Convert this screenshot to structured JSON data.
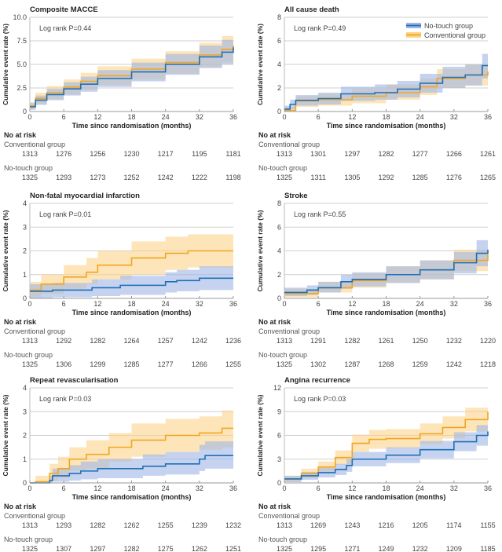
{
  "colors": {
    "no_touch": "#1f6fb5",
    "conventional": "#f2a51e",
    "no_touch_band": "#9fb6e6",
    "conventional_band": "#fcd48a"
  },
  "legend": {
    "no_touch": "No-touch group",
    "conventional": "Conventional group",
    "placement": "top-right of All cause death panel"
  },
  "common": {
    "xlabel": "Time since randomisation (months)",
    "ylabel": "Cumulative event rate (%)",
    "risk_header": "No at risk",
    "conv_label": "Conventional group",
    "nt_label": "No-touch group",
    "x_tick_labels": [
      "0",
      "6",
      "12",
      "18",
      "24",
      "32",
      "36"
    ]
  },
  "chart_data": [
    {
      "type": "line",
      "title": "Composite MACCE",
      "logrank": "Log rank P=0.44",
      "ylim": [
        0,
        10
      ],
      "y_tick_labels": [
        "0",
        "2.5",
        "5.0",
        "7.5",
        "10.0"
      ],
      "xlim": [
        0,
        36
      ],
      "grid": true,
      "series": [
        {
          "name": "No-touch group",
          "points": [
            [
              0,
              0.5,
              0.2,
              0.9
            ],
            [
              1,
              1.2,
              0.7,
              1.7
            ],
            [
              3,
              1.8,
              1.2,
              2.4
            ],
            [
              6,
              2.4,
              1.7,
              3.1
            ],
            [
              9,
              2.9,
              2.1,
              3.7
            ],
            [
              12,
              3.5,
              2.6,
              4.4
            ],
            [
              18,
              4.2,
              3.2,
              5.2
            ],
            [
              24,
              5.0,
              3.9,
              6.1
            ],
            [
              30,
              5.8,
              4.6,
              7.0
            ],
            [
              34,
              6.3,
              5.0,
              7.6
            ],
            [
              36,
              6.8,
              5.4,
              8.1
            ]
          ]
        },
        {
          "name": "Conventional group",
          "points": [
            [
              0,
              0.6,
              0.2,
              1.0
            ],
            [
              1,
              1.4,
              0.8,
              2.0
            ],
            [
              3,
              2.0,
              1.3,
              2.7
            ],
            [
              6,
              2.6,
              1.8,
              3.4
            ],
            [
              9,
              3.2,
              2.3,
              4.1
            ],
            [
              12,
              3.8,
              2.8,
              4.8
            ],
            [
              18,
              4.5,
              3.4,
              5.6
            ],
            [
              24,
              5.2,
              4.0,
              6.4
            ],
            [
              30,
              6.0,
              4.7,
              7.3
            ],
            [
              34,
              6.6,
              5.2,
              8.0
            ],
            [
              36,
              7.0,
              5.6,
              8.5
            ]
          ]
        }
      ],
      "at_risk": {
        "conventional": [
          "1313",
          "1276",
          "1256",
          "1230",
          "1217",
          "1195",
          "1181"
        ],
        "no_touch": [
          "1325",
          "1293",
          "1273",
          "1252",
          "1242",
          "1222",
          "1198"
        ]
      }
    },
    {
      "type": "line",
      "title": "All cause death",
      "logrank": "Log rank P=0.49",
      "ylim": [
        0,
        8
      ],
      "y_tick_labels": [
        "0",
        "2",
        "4",
        "6",
        "8"
      ],
      "xlim": [
        0,
        36
      ],
      "grid": true,
      "series": [
        {
          "name": "No-touch group",
          "points": [
            [
              0,
              0.2,
              0,
              0.5
            ],
            [
              1,
              0.6,
              0.2,
              1.0
            ],
            [
              2,
              0.95,
              0.5,
              1.4
            ],
            [
              6,
              1.1,
              0.6,
              1.6
            ],
            [
              10,
              1.5,
              0.9,
              2.1
            ],
            [
              16,
              1.6,
              1.0,
              2.3
            ],
            [
              20,
              1.9,
              1.2,
              2.6
            ],
            [
              24,
              2.4,
              1.6,
              3.2
            ],
            [
              28,
              2.9,
              2.0,
              3.8
            ],
            [
              32,
              3.1,
              2.2,
              4.0
            ],
            [
              35,
              3.9,
              2.8,
              4.9
            ],
            [
              36,
              3.9,
              2.8,
              4.9
            ]
          ]
        },
        {
          "name": "Conventional group",
          "points": [
            [
              0,
              0.1,
              0,
              0.4
            ],
            [
              2,
              0.9,
              0.4,
              1.3
            ],
            [
              6,
              1.0,
              0.5,
              1.5
            ],
            [
              12,
              1.3,
              0.7,
              1.9
            ],
            [
              18,
              1.6,
              1.0,
              2.3
            ],
            [
              24,
              2.1,
              1.4,
              2.8
            ],
            [
              27,
              2.8,
              2.0,
              3.6
            ],
            [
              32,
              3.1,
              2.2,
              4.0
            ],
            [
              36,
              3.4,
              2.4,
              4.4
            ]
          ]
        }
      ],
      "at_risk": {
        "conventional": [
          "1313",
          "1301",
          "1297",
          "1282",
          "1277",
          "1266",
          "1261"
        ],
        "no_touch": [
          "1325",
          "1311",
          "1305",
          "1292",
          "1285",
          "1276",
          "1265"
        ]
      }
    },
    {
      "type": "line",
      "title": "Non-fatal myocardial infarction",
      "logrank": "Log rank P=0.01",
      "ylim": [
        0,
        4
      ],
      "y_tick_labels": [
        "0",
        "1",
        "2",
        "3",
        "4"
      ],
      "xlim": [
        0,
        36
      ],
      "grid": true,
      "series": [
        {
          "name": "No-touch group",
          "points": [
            [
              0,
              0.3,
              0,
              0.6
            ],
            [
              4,
              0.35,
              0.05,
              0.65
            ],
            [
              11,
              0.45,
              0.1,
              0.8
            ],
            [
              16,
              0.55,
              0.15,
              0.95
            ],
            [
              24,
              0.7,
              0.25,
              1.1
            ],
            [
              26,
              0.75,
              0.3,
              1.2
            ],
            [
              30,
              0.85,
              0.35,
              1.35
            ],
            [
              36,
              0.85,
              0.35,
              1.35
            ]
          ]
        },
        {
          "name": "Conventional group",
          "points": [
            [
              0,
              0.35,
              0.05,
              0.7
            ],
            [
              2,
              0.6,
              0.2,
              1.0
            ],
            [
              6,
              0.9,
              0.4,
              1.4
            ],
            [
              10,
              1.1,
              0.6,
              1.7
            ],
            [
              12,
              1.4,
              0.8,
              2.0
            ],
            [
              18,
              1.7,
              1.0,
              2.4
            ],
            [
              24,
              1.9,
              1.2,
              2.6
            ],
            [
              28,
              2.0,
              1.3,
              2.7
            ],
            [
              36,
              2.0,
              1.3,
              2.7
            ]
          ]
        }
      ],
      "at_risk": {
        "conventional": [
          "1313",
          "1292",
          "1282",
          "1264",
          "1257",
          "1242",
          "1236"
        ],
        "no_touch": [
          "1325",
          "1306",
          "1299",
          "1285",
          "1277",
          "1266",
          "1255"
        ]
      }
    },
    {
      "type": "line",
      "title": "Stroke",
      "logrank": "Log rank P=0.55",
      "ylim": [
        0,
        8
      ],
      "y_tick_labels": [
        "0",
        "2",
        "4",
        "6",
        "8"
      ],
      "xlim": [
        0,
        36
      ],
      "grid": true,
      "series": [
        {
          "name": "No-touch group",
          "points": [
            [
              0,
              0.5,
              0.2,
              0.9
            ],
            [
              4,
              0.7,
              0.3,
              1.1
            ],
            [
              6,
              0.9,
              0.5,
              1.4
            ],
            [
              10,
              1.4,
              0.8,
              2.0
            ],
            [
              12,
              1.6,
              1.0,
              2.2
            ],
            [
              18,
              2.0,
              1.3,
              2.7
            ],
            [
              24,
              2.4,
              1.6,
              3.2
            ],
            [
              30,
              3.0,
              2.1,
              3.9
            ],
            [
              34,
              3.8,
              2.7,
              4.9
            ],
            [
              36,
              4.1,
              3.0,
              5.3
            ]
          ]
        },
        {
          "name": "Conventional group",
          "points": [
            [
              0,
              0.4,
              0.1,
              0.8
            ],
            [
              6,
              0.9,
              0.5,
              1.4
            ],
            [
              12,
              1.5,
              0.9,
              2.1
            ],
            [
              18,
              2.0,
              1.3,
              2.7
            ],
            [
              24,
              2.4,
              1.6,
              3.2
            ],
            [
              30,
              3.2,
              2.3,
              4.1
            ],
            [
              36,
              3.7,
              2.7,
              4.7
            ]
          ]
        }
      ],
      "at_risk": {
        "conventional": [
          "1313",
          "1291",
          "1282",
          "1261",
          "1250",
          "1232",
          "1220"
        ],
        "no_touch": [
          "1325",
          "1302",
          "1287",
          "1268",
          "1259",
          "1242",
          "1218"
        ]
      }
    },
    {
      "type": "line",
      "title": "Repeat revascularisation",
      "logrank": "Log rank P=0.03",
      "ylim": [
        0,
        4
      ],
      "y_tick_labels": [
        "0",
        "1",
        "2",
        "3",
        "4"
      ],
      "xlim": [
        0,
        36
      ],
      "grid": true,
      "series": [
        {
          "name": "No-touch group",
          "points": [
            [
              0,
              0,
              0,
              0
            ],
            [
              3.5,
              0.1,
              0,
              0.3
            ],
            [
              4,
              0.3,
              0.05,
              0.6
            ],
            [
              7,
              0.4,
              0.1,
              0.75
            ],
            [
              9,
              0.5,
              0.15,
              0.9
            ],
            [
              12,
              0.6,
              0.2,
              1.0
            ],
            [
              20,
              0.7,
              0.3,
              1.2
            ],
            [
              24,
              0.8,
              0.35,
              1.3
            ],
            [
              30,
              1.0,
              0.5,
              1.6
            ],
            [
              31,
              1.15,
              0.6,
              1.75
            ],
            [
              36,
              1.15,
              0.6,
              1.75
            ]
          ]
        },
        {
          "name": "Conventional group",
          "points": [
            [
              0,
              0,
              0,
              0
            ],
            [
              1,
              0.05,
              0,
              0.3
            ],
            [
              3.5,
              0.4,
              0.1,
              0.8
            ],
            [
              5,
              0.6,
              0.2,
              1.1
            ],
            [
              7,
              1.0,
              0.5,
              1.5
            ],
            [
              10,
              1.2,
              0.6,
              1.8
            ],
            [
              14,
              1.5,
              0.9,
              2.1
            ],
            [
              18,
              1.8,
              1.1,
              2.5
            ],
            [
              24,
              2.0,
              1.3,
              2.7
            ],
            [
              30,
              2.1,
              1.4,
              2.8
            ],
            [
              34,
              2.3,
              1.5,
              3.05
            ],
            [
              36,
              2.3,
              1.5,
              3.05
            ]
          ]
        }
      ],
      "at_risk": {
        "conventional": [
          "1313",
          "1293",
          "1282",
          "1262",
          "1255",
          "1239",
          "1232"
        ],
        "no_touch": [
          "1325",
          "1307",
          "1297",
          "1282",
          "1275",
          "1262",
          "1251"
        ]
      }
    },
    {
      "type": "line",
      "title": "Angina recurrence",
      "logrank": "Log rank P=0.03",
      "ylim": [
        0,
        12
      ],
      "y_tick_labels": [
        "0",
        "3",
        "6",
        "9",
        "12"
      ],
      "xlim": [
        0,
        36
      ],
      "grid": true,
      "series": [
        {
          "name": "No-touch group",
          "points": [
            [
              0,
              0.5,
              0.1,
              0.9
            ],
            [
              3,
              0.9,
              0.4,
              1.4
            ],
            [
              6,
              1.3,
              0.7,
              1.9
            ],
            [
              9,
              1.7,
              1.0,
              2.4
            ],
            [
              11,
              2.2,
              1.4,
              3.0
            ],
            [
              12,
              3.0,
              2.1,
              3.9
            ],
            [
              18,
              3.5,
              2.5,
              4.5
            ],
            [
              24,
              4.2,
              3.1,
              5.3
            ],
            [
              30,
              5.2,
              4.0,
              6.4
            ],
            [
              34,
              6.0,
              4.7,
              7.3
            ],
            [
              36,
              6.5,
              5.2,
              7.8
            ]
          ]
        },
        {
          "name": "Conventional group",
          "points": [
            [
              0,
              0.5,
              0.1,
              0.9
            ],
            [
              3,
              1.2,
              0.6,
              1.8
            ],
            [
              6,
              2.0,
              1.3,
              2.7
            ],
            [
              9,
              3.2,
              2.3,
              4.1
            ],
            [
              12,
              5.0,
              3.9,
              6.1
            ],
            [
              15,
              5.5,
              4.3,
              6.7
            ],
            [
              18,
              5.6,
              4.4,
              6.8
            ],
            [
              24,
              6.2,
              4.9,
              7.5
            ],
            [
              28,
              7.0,
              5.6,
              8.4
            ],
            [
              32,
              8.0,
              6.5,
              9.5
            ],
            [
              36,
              9.0,
              7.4,
              10.6
            ]
          ]
        }
      ],
      "at_risk": {
        "conventional": [
          "1313",
          "1269",
          "1243",
          "1216",
          "1205",
          "1174",
          "1155"
        ],
        "no_touch": [
          "1325",
          "1295",
          "1271",
          "1249",
          "1232",
          "1209",
          "1185"
        ]
      }
    }
  ]
}
